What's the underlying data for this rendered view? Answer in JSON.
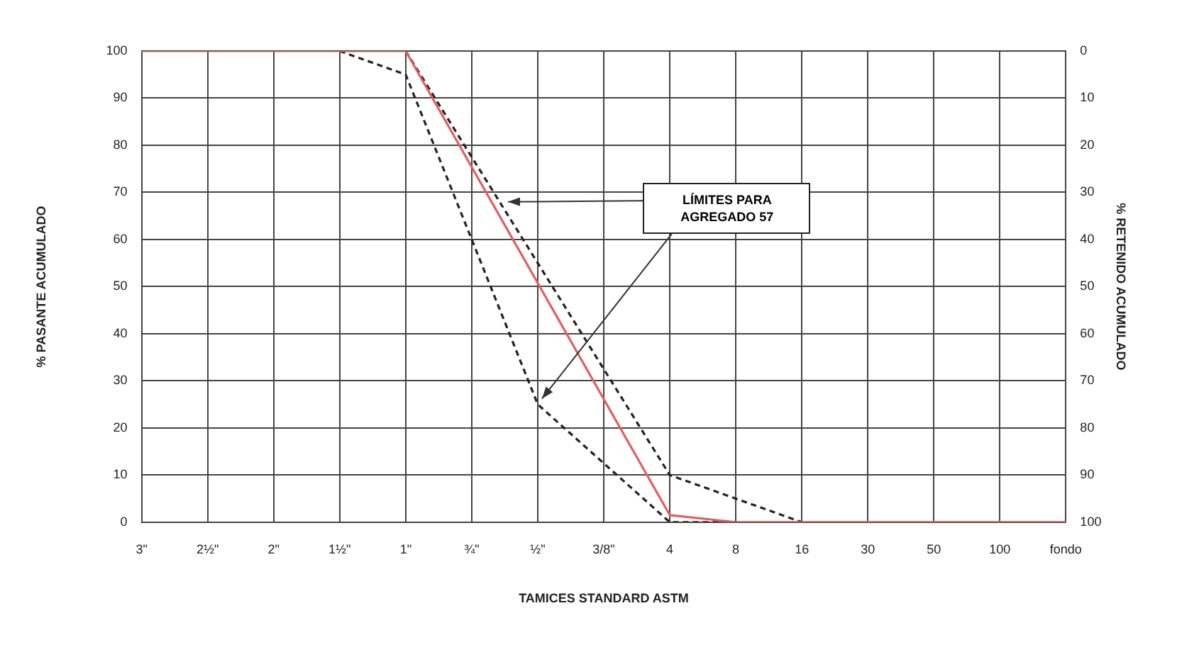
{
  "chart_data": {
    "type": "line",
    "xlabel": "TAMICES STANDARD ASTM",
    "ylabel": "% PASANTE ACUMULADO",
    "y2label": "% RETENIDO ACUMULADO",
    "categories": [
      "3\"",
      "2½\"",
      "2\"",
      "1½\"",
      "1\"",
      "¾\"",
      "½\"",
      "3/8\"",
      "4",
      "8",
      "16",
      "30",
      "50",
      "100",
      "fondo"
    ],
    "series": [
      {
        "color": "#e06060",
        "line_style": "solid",
        "values": [
          100,
          100,
          100,
          100,
          100,
          null,
          null,
          null,
          1.5,
          0,
          0,
          0,
          0,
          0,
          0
        ]
      },
      {
        "color": "#222222",
        "line_style": "dashed",
        "values": [
          null,
          null,
          null,
          100,
          95,
          null,
          25,
          null,
          0,
          0,
          null,
          null,
          null,
          null,
          null
        ]
      },
      {
        "color": "#222222",
        "line_style": "dashed",
        "values": [
          null,
          null,
          null,
          null,
          100,
          null,
          null,
          null,
          10,
          null,
          0,
          null,
          null,
          null,
          null
        ]
      }
    ],
    "ylim": [
      0,
      100
    ],
    "yticks": [
      0,
      10,
      20,
      30,
      40,
      50,
      60,
      70,
      80,
      90,
      100
    ],
    "y2lim": [
      100,
      0
    ],
    "y2ticks": [
      0,
      10,
      20,
      30,
      40,
      50,
      60,
      70,
      80,
      90,
      100
    ],
    "annotations": [
      {
        "text": "LÍMITES PARA AGREGADO 57",
        "x": "½\"",
        "y": 25
      }
    ],
    "grid": true,
    "legend": false,
    "marker": "none"
  }
}
